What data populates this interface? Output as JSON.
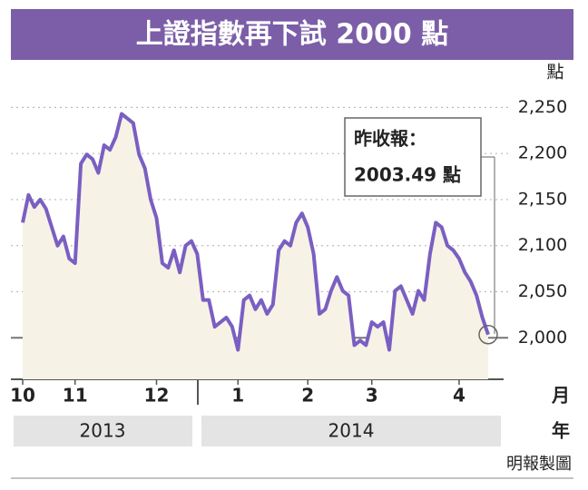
{
  "chart_data": {
    "type": "line",
    "title": "上證指數再下試 2000 點",
    "y_unit": "點",
    "x_unit": "月",
    "year_unit": "年",
    "credit": "明報製圖",
    "annotation": [
      "昨收報：",
      "2003.49 點"
    ],
    "year_labels": [
      "2013",
      "2014"
    ],
    "series": [
      {
        "color": "#7a5fc2",
        "values": [
          2125,
          2155,
          2142,
          2150,
          2140,
          2120,
          2100,
          2110,
          2086,
          2081,
          2189,
          2199,
          2194,
          2179,
          2209,
          2204,
          2218,
          2243,
          2238,
          2233,
          2199,
          2184,
          2150,
          2130,
          2081,
          2076,
          2095,
          2071,
          2100,
          2105,
          2091,
          2041,
          2041,
          2012,
          2017,
          2022,
          2012,
          1987,
          2041,
          2046,
          2031,
          2041,
          2026,
          2036,
          2095,
          2105,
          2100,
          2125,
          2135,
          2120,
          2091,
          2026,
          2031,
          2051,
          2066,
          2051,
          2046,
          1992,
          1997,
          1992,
          2017,
          2012,
          2017,
          1987,
          2051,
          2056,
          2041,
          2026,
          2051,
          2041,
          2091,
          2125,
          2120,
          2100,
          2095,
          2086,
          2071,
          2061,
          2046,
          2022,
          2003.49
        ]
      }
    ],
    "xlim": [
      0,
      80
    ],
    "xticks": [
      {
        "value": 0,
        "label": "10"
      },
      {
        "value": 9,
        "label": "11"
      },
      {
        "value": 23,
        "label": "12"
      },
      {
        "value": 37,
        "label": "1"
      },
      {
        "value": 49,
        "label": "2"
      },
      {
        "value": 60,
        "label": "3"
      },
      {
        "value": 75,
        "label": "4"
      }
    ],
    "ylim": [
      1955,
      2275
    ],
    "yticks": [
      {
        "value": 2000,
        "label": "2,000"
      },
      {
        "value": 2050,
        "label": "2,050"
      },
      {
        "value": 2100,
        "label": "2,100"
      },
      {
        "value": 2150,
        "label": "2,150"
      },
      {
        "value": 2200,
        "label": "2,200"
      },
      {
        "value": 2250,
        "label": "2,250"
      }
    ],
    "grid": true
  }
}
